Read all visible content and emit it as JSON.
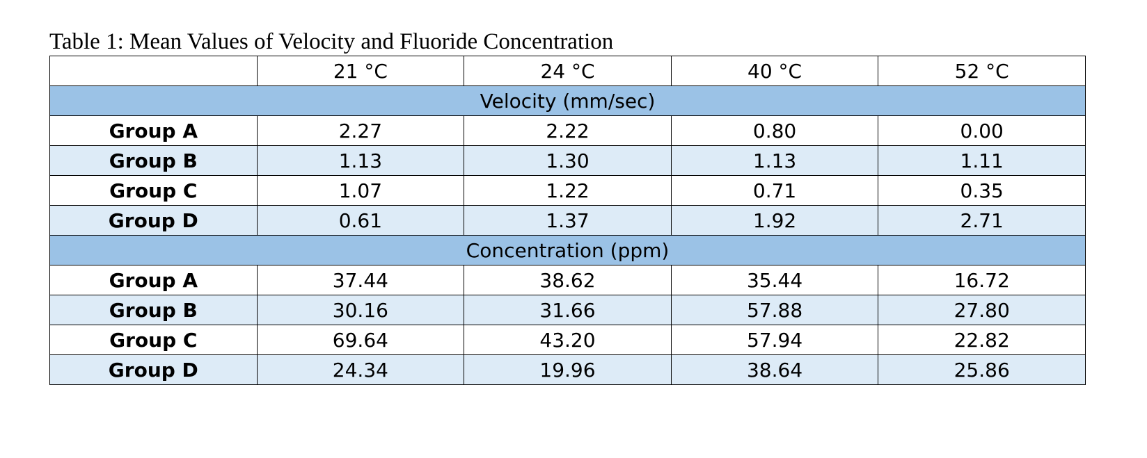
{
  "caption": "Table 1: Mean Values of Velocity and Fluoride Concentration",
  "columns": [
    "21 °C",
    "24 °C",
    "40 °C",
    "52 °C"
  ],
  "sections": [
    {
      "title": "Velocity (mm/sec)",
      "rows": [
        {
          "label": "Group A",
          "values": [
            "2.27",
            "2.22",
            "0.80",
            "0.00"
          ]
        },
        {
          "label": "Group B",
          "values": [
            "1.13",
            "1.30",
            "1.13",
            "1.11"
          ]
        },
        {
          "label": "Group C",
          "values": [
            "1.07",
            "1.22",
            "0.71",
            "0.35"
          ]
        },
        {
          "label": "Group D",
          "values": [
            "0.61",
            "1.37",
            "1.92",
            "2.71"
          ]
        }
      ]
    },
    {
      "title": "Concentration (ppm)",
      "rows": [
        {
          "label": "Group A",
          "values": [
            "37.44",
            "38.62",
            "35.44",
            "16.72"
          ]
        },
        {
          "label": "Group B",
          "values": [
            "30.16",
            "31.66",
            "57.88",
            "27.80"
          ]
        },
        {
          "label": "Group C",
          "values": [
            "69.64",
            "43.20",
            "57.94",
            "22.82"
          ]
        },
        {
          "label": "Group D",
          "values": [
            "24.34",
            "19.96",
            "38.64",
            "25.86"
          ]
        }
      ]
    }
  ],
  "colors": {
    "section_header_bg": "#9bc2e6",
    "band_row_bg": "#ddebf7",
    "border": "#000000"
  }
}
